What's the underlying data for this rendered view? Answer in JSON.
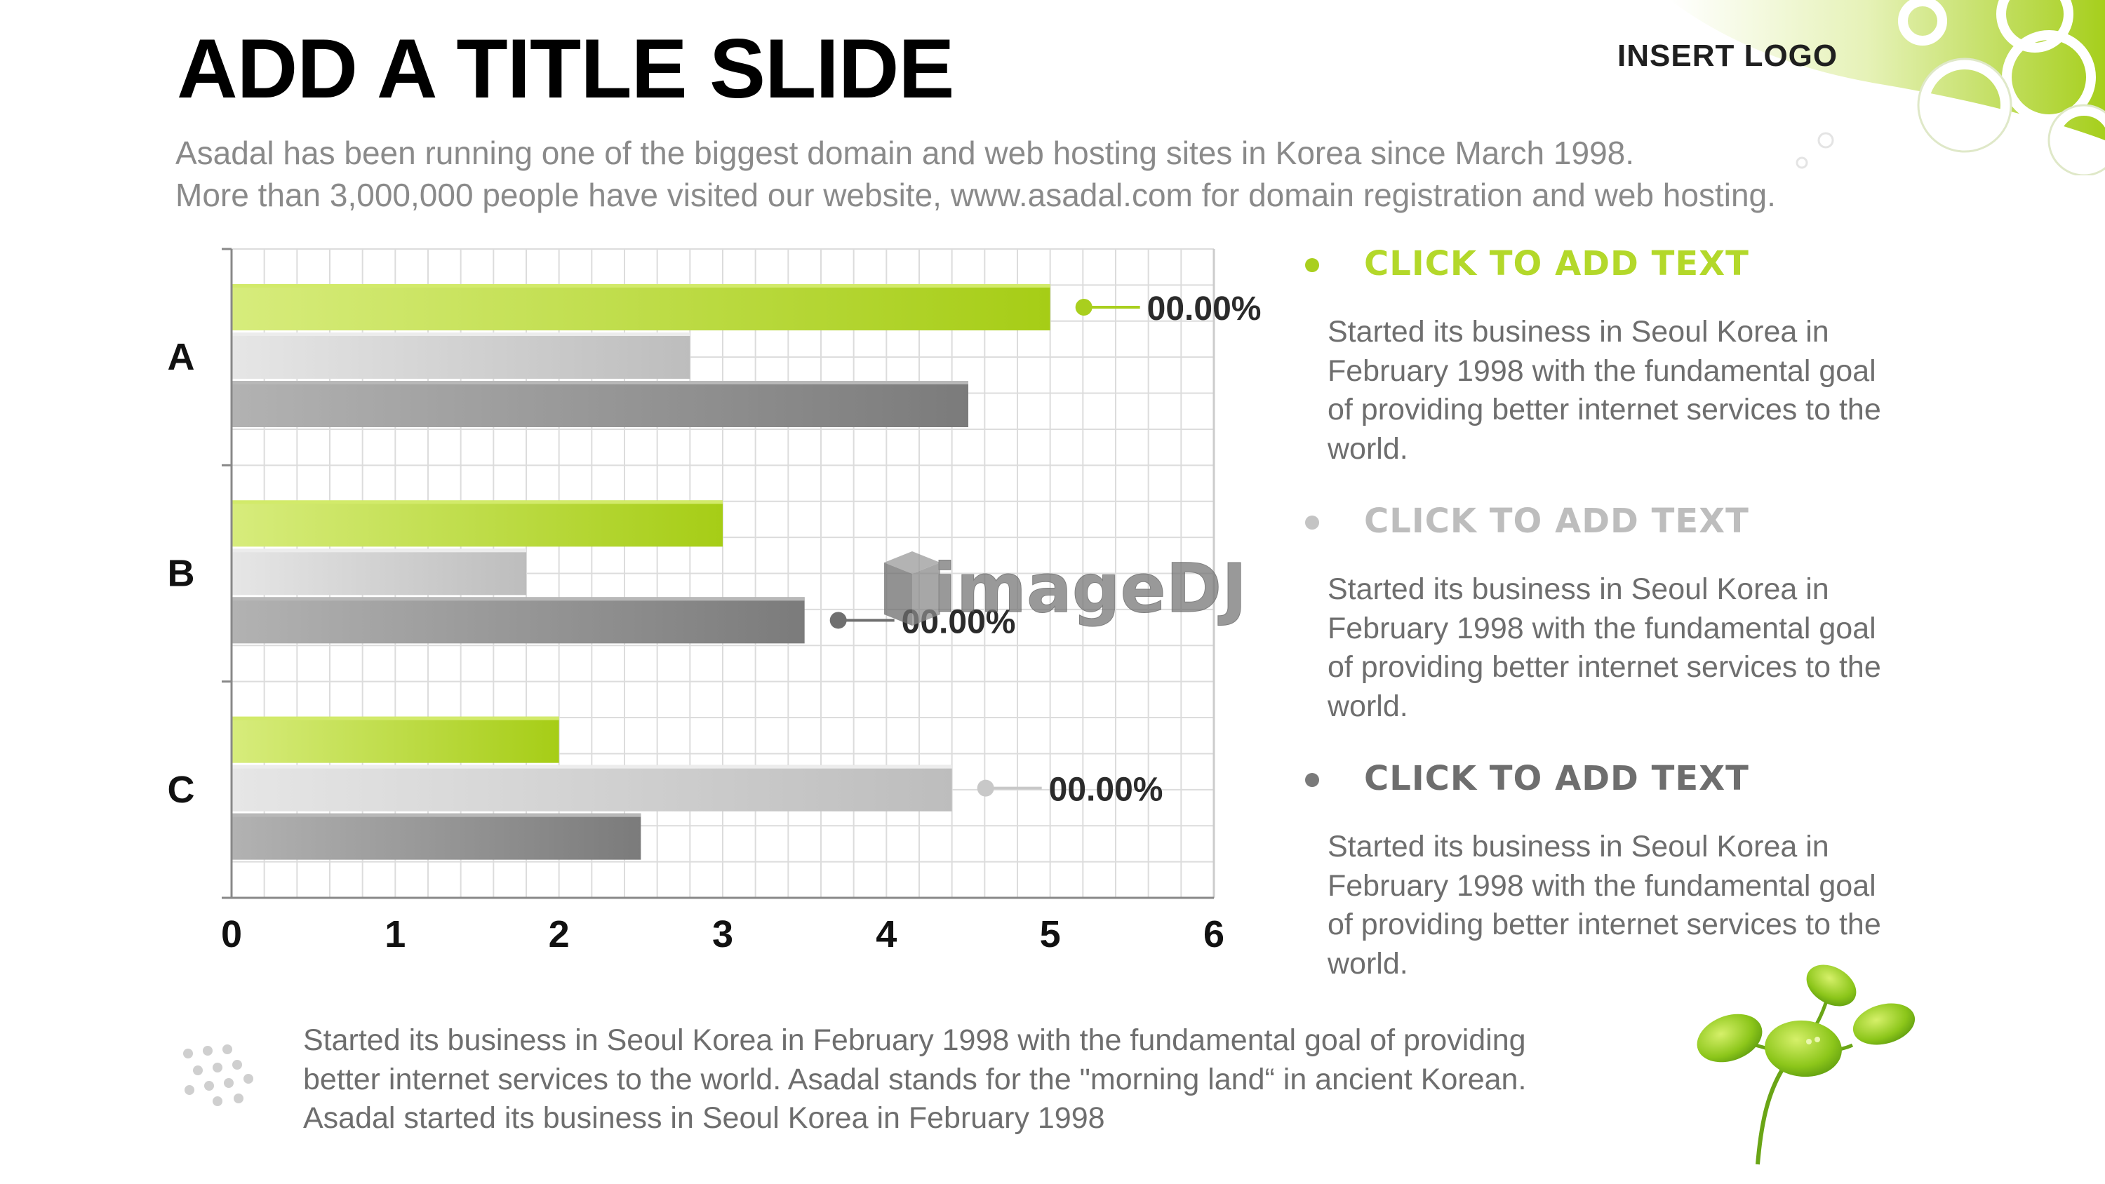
{
  "header": {
    "title": "ADD A TITLE SLIDE",
    "logo_text": "INSERT LOGO",
    "subtitle_lines": [
      "Asadal has been running one of the biggest domain and web hosting sites in Korea since March 1998.",
      "More than 3,000,000 people have visited our website,  www.asadal.com for domain registration and web hosting."
    ]
  },
  "colors": {
    "accent_green": "#a9cf1e",
    "light_gray": "#c8c8c8",
    "dark_gray": "#8c8c8c",
    "text_gray": "#6e6e6e"
  },
  "chart_data": {
    "type": "bar",
    "orientation": "horizontal",
    "categories": [
      "A",
      "B",
      "C"
    ],
    "series": [
      {
        "values": [
          5,
          3,
          2
        ]
      },
      {
        "values": [
          2.8,
          1.8,
          4.4
        ]
      },
      {
        "values": [
          4.5,
          3.5,
          2.5
        ]
      }
    ],
    "xlim": [
      0,
      6
    ],
    "x_ticks": [
      "0",
      "1",
      "2",
      "3",
      "4",
      "5",
      "6"
    ],
    "grid": true,
    "annotations": [
      {
        "label": "00.00%",
        "category": "A",
        "series_index": 0
      },
      {
        "label": "00.00%",
        "category": "B",
        "series_index": 2
      },
      {
        "label": "00.00%",
        "category": "C",
        "series_index": 1
      }
    ]
  },
  "bullets": [
    {
      "heading": "CLICK TO ADD TEXT",
      "body_lines": [
        "Started its business in Seoul Korea  in",
        "February 1998 with the fundamental goal",
        "of providing better internet services to the",
        "world."
      ]
    },
    {
      "heading": "CLICK TO ADD TEXT",
      "body_lines": [
        "Started its business in Seoul Korea  in",
        "February 1998 with the fundamental goal",
        "of providing better internet services to the",
        "world."
      ]
    },
    {
      "heading": "CLICK TO ADD TEXT",
      "body_lines": [
        "Started its business in Seoul Korea  in",
        "February 1998 with the fundamental goal",
        "of providing better internet services to the",
        "world."
      ]
    }
  ],
  "bottom_text_lines": [
    "Started its business in Seoul Korea  in February 1998 with the fundamental goal of providing",
    "better internet services to the world. Asadal stands for the \"morning land“ in ancient Korean.",
    "Asadal started its business in Seoul Korea  in February 1998"
  ],
  "watermark_text": "imageDJ"
}
